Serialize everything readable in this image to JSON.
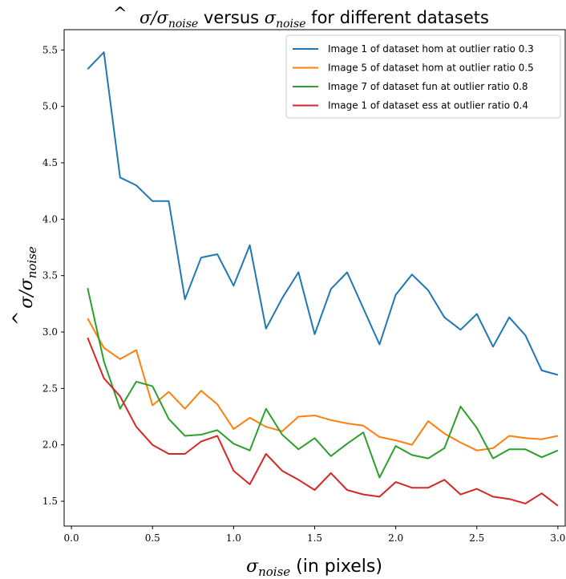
{
  "chart_data": {
    "type": "line",
    "title": "σ̂/σnoise versus σnoise for different datasets",
    "title_parts": {
      "lhs_base": "σ",
      "lhs_hat": "^",
      "slash": "/",
      "sigma": "σ",
      "sub": "noise",
      "versus": " versus ",
      "sigma2": "σ",
      "sub2": "noise",
      "rest": " for different datasets"
    },
    "xlabel": "σnoise (in pixels)",
    "xlabel_parts": {
      "sigma": "σ",
      "sub": "noise",
      "rest": " (in pixels)"
    },
    "ylabel": "σ̂/σnoise",
    "ylabel_parts": {
      "sigma": "σ",
      "hat": "^",
      "slash": "/",
      "sigma2": "σ",
      "sub": "noise"
    },
    "xlim": [
      -0.045,
      3.045
    ],
    "ylim": [
      1.28,
      5.68
    ],
    "x_ticks": [
      0.0,
      0.5,
      1.0,
      1.5,
      2.0,
      2.5,
      3.0
    ],
    "x_tick_labels": [
      "0.0",
      "0.5",
      "1.0",
      "1.5",
      "2.0",
      "2.5",
      "3.0"
    ],
    "y_ticks": [
      1.5,
      2.0,
      2.5,
      3.0,
      3.5,
      4.0,
      4.5,
      5.0,
      5.5
    ],
    "y_tick_labels": [
      "1.5",
      "2.0",
      "2.5",
      "3.0",
      "3.5",
      "4.0",
      "4.5",
      "5.0",
      "5.5"
    ],
    "grid": false,
    "legend_position": "top-right",
    "x": [
      0.1,
      0.2,
      0.3,
      0.4,
      0.5,
      0.6,
      0.7,
      0.8,
      0.9,
      1.0,
      1.1,
      1.2,
      1.3,
      1.4,
      1.5,
      1.6,
      1.7,
      1.8,
      1.9,
      2.0,
      2.1,
      2.2,
      2.3,
      2.4,
      2.5,
      2.6,
      2.7,
      2.8,
      2.9,
      3.0
    ],
    "series": [
      {
        "name": "Image 1 of dataset hom at outlier ratio 0.3",
        "color": "#1f77b4",
        "values": [
          5.33,
          5.48,
          4.37,
          4.3,
          4.16,
          4.16,
          3.29,
          3.66,
          3.69,
          3.41,
          3.77,
          3.03,
          3.3,
          3.53,
          2.98,
          3.38,
          3.53,
          3.21,
          2.89,
          3.33,
          3.51,
          3.37,
          3.13,
          3.02,
          3.16,
          2.87,
          3.13,
          2.97,
          2.66,
          2.62
        ]
      },
      {
        "name": "Image 5 of dataset hom at outlier ratio 0.5",
        "color": "#ff7f0e",
        "values": [
          3.12,
          2.86,
          2.76,
          2.84,
          2.35,
          2.47,
          2.32,
          2.48,
          2.36,
          2.14,
          2.24,
          2.16,
          2.12,
          2.25,
          2.26,
          2.22,
          2.19,
          2.17,
          2.07,
          2.04,
          2.0,
          2.21,
          2.1,
          2.02,
          1.95,
          1.97,
          2.08,
          2.06,
          2.05,
          2.08
        ]
      },
      {
        "name": "Image 7 of dataset fun at outlier ratio 0.8",
        "color": "#2ca02c",
        "values": [
          3.39,
          2.74,
          2.32,
          2.56,
          2.52,
          2.23,
          2.08,
          2.09,
          2.13,
          2.01,
          1.95,
          2.32,
          2.09,
          1.96,
          2.06,
          1.9,
          2.01,
          2.11,
          1.71,
          1.99,
          1.91,
          1.88,
          1.97,
          2.34,
          2.15,
          1.88,
          1.96,
          1.96,
          1.89,
          1.95
        ]
      },
      {
        "name": "Image 1 of dataset ess at outlier ratio 0.4",
        "color": "#d62728",
        "values": [
          2.95,
          2.59,
          2.43,
          2.16,
          2.0,
          1.92,
          1.92,
          2.03,
          2.08,
          1.77,
          1.65,
          1.92,
          1.77,
          1.69,
          1.6,
          1.75,
          1.6,
          1.56,
          1.54,
          1.67,
          1.62,
          1.62,
          1.69,
          1.56,
          1.61,
          1.54,
          1.52,
          1.48,
          1.57,
          1.46
        ]
      }
    ]
  }
}
